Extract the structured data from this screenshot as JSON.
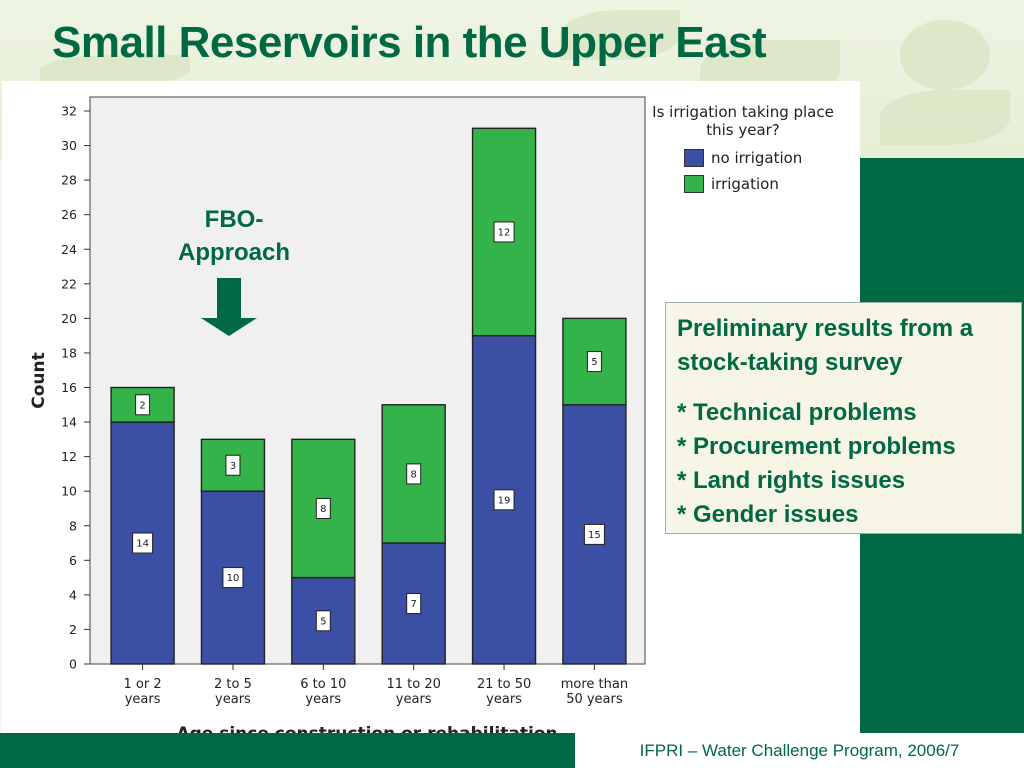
{
  "slide": {
    "title": "Small Reservoirs in the Upper East",
    "footer": "IFPRI – Water Challenge Program, 2006/7",
    "accent_color": "#006943"
  },
  "annotation": {
    "label_line1": "FBO-",
    "label_line2": "Approach",
    "icon": "arrow-down-icon"
  },
  "info_box": {
    "heading": "Preliminary results from a stock-taking survey",
    "items": [
      "* Technical problems",
      "* Procurement problems",
      "* Land rights issues",
      "* Gender issues"
    ]
  },
  "chart_data": {
    "type": "bar",
    "stacked": true,
    "categories": [
      [
        "1 or 2",
        "years"
      ],
      [
        "2 to 5",
        "years"
      ],
      [
        "6 to 10",
        "years"
      ],
      [
        "11 to 20",
        "years"
      ],
      [
        "21 to 50",
        "years"
      ],
      [
        "more than",
        "50 years"
      ]
    ],
    "series": [
      {
        "name": "no irrigation",
        "color": "#3b4fa5",
        "values": [
          14,
          10,
          5,
          7,
          19,
          15
        ]
      },
      {
        "name": "irrigation",
        "color": "#33b34a",
        "values": [
          2,
          3,
          8,
          8,
          12,
          5
        ]
      }
    ],
    "legend_title": "Is irrigation taking place this year?",
    "legend_position": "right",
    "xlabel": "Age since construction or rehabilitation",
    "ylabel": "Count",
    "ylim": [
      0,
      32
    ],
    "yticks": [
      0,
      2,
      4,
      6,
      8,
      10,
      12,
      14,
      16,
      18,
      20,
      22,
      24,
      26,
      28,
      30,
      32
    ],
    "plot_background": "#f0f0f0",
    "data_labels": true,
    "grid": false
  }
}
